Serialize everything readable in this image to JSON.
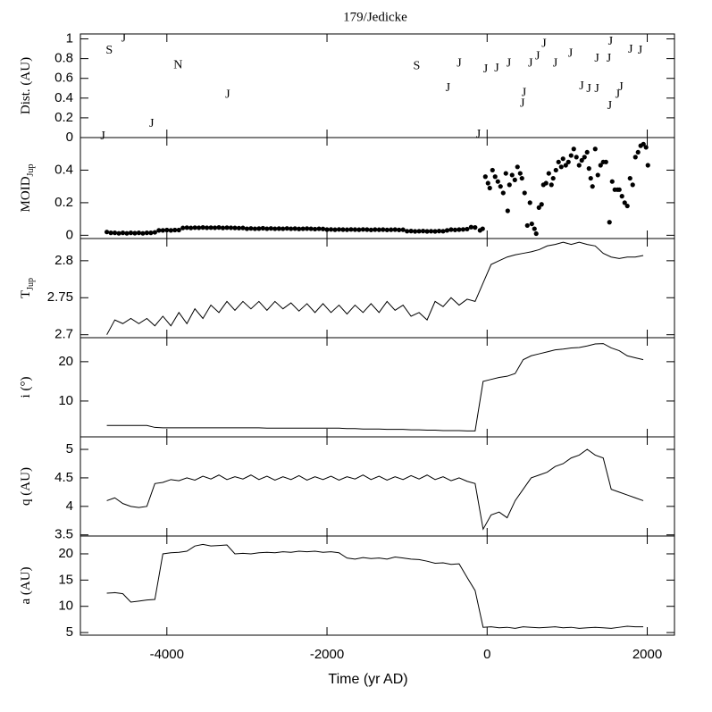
{
  "chart_data": [
    {
      "type": "scatter",
      "title": "179/Jedicke",
      "ylabel": "Dist. (AU)",
      "x": [
        -4800,
        -4720,
        -4540,
        -4190,
        -3860,
        -3240,
        -880,
        -490,
        -350,
        -110,
        -20,
        120,
        270,
        460,
        440,
        540,
        630,
        710,
        850,
        1040,
        1180,
        1270,
        1370,
        1370,
        1520,
        1530,
        1540,
        1630,
        1670,
        1790,
        1910
      ],
      "values": [
        0.01,
        0.88,
        1.0,
        0.14,
        0.73,
        0.43,
        0.72,
        0.5,
        0.75,
        0.03,
        0.69,
        0.7,
        0.75,
        0.45,
        0.34,
        0.75,
        0.82,
        0.95,
        0.75,
        0.85,
        0.52,
        0.49,
        0.49,
        0.8,
        0.8,
        0.32,
        0.97,
        0.43,
        0.51,
        0.89,
        0.88
      ],
      "marker_labels": [
        "J",
        "S",
        "J",
        "J",
        "N",
        "J",
        "S",
        "J",
        "J",
        "J",
        "J",
        "J",
        "J",
        "J",
        "J",
        "J",
        "J",
        "J",
        "J",
        "J",
        "J",
        "J",
        "J",
        "J",
        "J",
        "J",
        "J",
        "J",
        "J",
        "J",
        "J"
      ],
      "ylim": [
        0,
        1.05
      ],
      "yticks": [
        0,
        0.2,
        0.4,
        0.6,
        0.8,
        1
      ]
    },
    {
      "type": "scatter",
      "ylabel": "MOID",
      "ylabel_sub": "Jup",
      "color": "#000000",
      "x": [
        -4750,
        -4700,
        -4650,
        -4600,
        -4550,
        -4500,
        -4450,
        -4400,
        -4350,
        -4300,
        -4250,
        -4200,
        -4150,
        -4100,
        -4050,
        -4000,
        -3950,
        -3900,
        -3850,
        -3800,
        -3750,
        -3700,
        -3650,
        -3600,
        -3550,
        -3500,
        -3450,
        -3400,
        -3350,
        -3300,
        -3250,
        -3200,
        -3150,
        -3100,
        -3050,
        -3000,
        -2950,
        -2900,
        -2850,
        -2800,
        -2750,
        -2700,
        -2650,
        -2600,
        -2550,
        -2500,
        -2450,
        -2400,
        -2350,
        -2300,
        -2250,
        -2200,
        -2150,
        -2100,
        -2050,
        -2000,
        -1950,
        -1900,
        -1850,
        -1800,
        -1750,
        -1700,
        -1650,
        -1600,
        -1550,
        -1500,
        -1450,
        -1400,
        -1350,
        -1300,
        -1250,
        -1200,
        -1150,
        -1100,
        -1050,
        -1000,
        -950,
        -900,
        -850,
        -800,
        -750,
        -700,
        -650,
        -600,
        -550,
        -500,
        -450,
        -400,
        -350,
        -300,
        -250,
        -200,
        -150,
        -89,
        -56,
        -22,
        11,
        33,
        67,
        100,
        134,
        167,
        201,
        234,
        257,
        279,
        312,
        346,
        379,
        413,
        435,
        468,
        502,
        535,
        558,
        591,
        613,
        647,
        680,
        703,
        736,
        770,
        803,
        825,
        859,
        892,
        926,
        948,
        982,
        1015,
        1049,
        1082,
        1115,
        1149,
        1182,
        1216,
        1249,
        1272,
        1294,
        1316,
        1350,
        1383,
        1417,
        1450,
        1484,
        1528,
        1562,
        1595,
        1629,
        1651,
        1684,
        1718,
        1751,
        1785,
        1818,
        1852,
        1885,
        1918,
        1952,
        1985,
        2008
      ],
      "values": [
        0.02,
        0.015,
        0.015,
        0.012,
        0.015,
        0.012,
        0.015,
        0.013,
        0.015,
        0.012,
        0.015,
        0.015,
        0.018,
        0.03,
        0.03,
        0.032,
        0.03,
        0.032,
        0.032,
        0.045,
        0.047,
        0.045,
        0.047,
        0.046,
        0.048,
        0.046,
        0.047,
        0.046,
        0.048,
        0.045,
        0.047,
        0.046,
        0.045,
        0.044,
        0.045,
        0.04,
        0.042,
        0.04,
        0.041,
        0.043,
        0.04,
        0.042,
        0.04,
        0.041,
        0.04,
        0.042,
        0.04,
        0.041,
        0.039,
        0.04,
        0.041,
        0.04,
        0.038,
        0.04,
        0.039,
        0.035,
        0.036,
        0.034,
        0.036,
        0.035,
        0.034,
        0.036,
        0.035,
        0.034,
        0.036,
        0.035,
        0.033,
        0.035,
        0.034,
        0.035,
        0.033,
        0.034,
        0.035,
        0.033,
        0.034,
        0.025,
        0.026,
        0.024,
        0.025,
        0.026,
        0.024,
        0.025,
        0.024,
        0.026,
        0.025,
        0.03,
        0.035,
        0.033,
        0.035,
        0.036,
        0.038,
        0.05,
        0.048,
        0.03,
        0.04,
        0.36,
        0.32,
        0.29,
        0.4,
        0.36,
        0.33,
        0.3,
        0.26,
        0.38,
        0.15,
        0.31,
        0.37,
        0.34,
        0.42,
        0.38,
        0.35,
        0.26,
        0.06,
        0.2,
        0.07,
        0.04,
        0.01,
        0.17,
        0.19,
        0.31,
        0.32,
        0.38,
        0.31,
        0.35,
        0.4,
        0.45,
        0.42,
        0.47,
        0.43,
        0.45,
        0.49,
        0.53,
        0.48,
        0.43,
        0.46,
        0.48,
        0.51,
        0.41,
        0.35,
        0.3,
        0.53,
        0.37,
        0.43,
        0.45,
        0.45,
        0.08,
        0.33,
        0.28,
        0.28,
        0.28,
        0.24,
        0.2,
        0.18,
        0.35,
        0.31,
        0.48,
        0.51,
        0.55,
        0.56,
        0.54,
        0.43
      ],
      "ylim": [
        -0.02,
        0.6
      ],
      "yticks": [
        0,
        0.2,
        0.4
      ]
    },
    {
      "type": "line",
      "ylabel": "T",
      "ylabel_sub": "Jup",
      "color": "#000000",
      "x": [
        -4750,
        -4650,
        -4550,
        -4450,
        -4350,
        -4250,
        -4150,
        -4050,
        -3950,
        -3850,
        -3750,
        -3650,
        -3550,
        -3450,
        -3350,
        -3250,
        -3150,
        -3050,
        -2950,
        -2850,
        -2750,
        -2650,
        -2550,
        -2450,
        -2350,
        -2250,
        -2150,
        -2050,
        -1950,
        -1850,
        -1750,
        -1650,
        -1550,
        -1450,
        -1350,
        -1250,
        -1150,
        -1050,
        -950,
        -850,
        -750,
        -650,
        -550,
        -450,
        -350,
        -250,
        -150,
        -50,
        50,
        150,
        250,
        350,
        450,
        550,
        650,
        750,
        850,
        950,
        1050,
        1150,
        1250,
        1350,
        1450,
        1550,
        1650,
        1750,
        1850,
        1950
      ],
      "values": [
        2.7,
        2.72,
        2.715,
        2.722,
        2.715,
        2.722,
        2.712,
        2.725,
        2.712,
        2.73,
        2.715,
        2.735,
        2.722,
        2.74,
        2.73,
        2.745,
        2.733,
        2.745,
        2.735,
        2.745,
        2.733,
        2.745,
        2.735,
        2.743,
        2.732,
        2.742,
        2.73,
        2.742,
        2.73,
        2.74,
        2.728,
        2.74,
        2.73,
        2.742,
        2.73,
        2.745,
        2.733,
        2.74,
        2.725,
        2.73,
        2.72,
        2.745,
        2.738,
        2.75,
        2.74,
        2.748,
        2.745,
        2.77,
        2.795,
        2.8,
        2.805,
        2.808,
        2.81,
        2.812,
        2.815,
        2.82,
        2.822,
        2.825,
        2.822,
        2.825,
        2.822,
        2.82,
        2.81,
        2.805,
        2.803,
        2.805,
        2.805,
        2.807
      ],
      "ylim": [
        2.696,
        2.83
      ],
      "yticks": [
        2.7,
        2.75,
        2.8
      ]
    },
    {
      "type": "line",
      "ylabel": "i (°)",
      "color": "#000000",
      "x": [
        -4750,
        -4650,
        -4550,
        -4450,
        -4350,
        -4250,
        -4150,
        -4050,
        -3950,
        -3850,
        -3750,
        -3650,
        -3550,
        -3450,
        -3350,
        -3250,
        -3150,
        -3050,
        -2950,
        -2850,
        -2750,
        -2650,
        -2550,
        -2450,
        -2350,
        -2250,
        -2150,
        -2050,
        -1950,
        -1850,
        -1750,
        -1650,
        -1550,
        -1450,
        -1350,
        -1250,
        -1150,
        -1050,
        -950,
        -850,
        -750,
        -650,
        -550,
        -450,
        -350,
        -250,
        -150,
        -50,
        50,
        150,
        250,
        350,
        450,
        550,
        650,
        750,
        850,
        950,
        1050,
        1150,
        1250,
        1350,
        1450,
        1550,
        1650,
        1750,
        1850,
        1950
      ],
      "values": [
        3.8,
        3.8,
        3.8,
        3.8,
        3.8,
        3.8,
        3.3,
        3.2,
        3.2,
        3.2,
        3.2,
        3.2,
        3.2,
        3.2,
        3.2,
        3.2,
        3.2,
        3.2,
        3.2,
        3.2,
        3.1,
        3.1,
        3.1,
        3.1,
        3.1,
        3.1,
        3.1,
        3.1,
        3.1,
        3.1,
        3.0,
        3.0,
        2.9,
        2.9,
        2.9,
        2.8,
        2.8,
        2.8,
        2.7,
        2.7,
        2.6,
        2.6,
        2.5,
        2.5,
        2.5,
        2.4,
        2.4,
        15.0,
        15.5,
        16.0,
        16.3,
        17.0,
        20.5,
        21.5,
        22.0,
        22.5,
        23.0,
        23.2,
        23.5,
        23.6,
        24.0,
        24.5,
        24.6,
        23.5,
        22.8,
        21.5,
        21.0,
        20.5
      ],
      "ylim": [
        0.9,
        26.1
      ],
      "yticks": [
        10,
        20
      ]
    },
    {
      "type": "line",
      "ylabel": "q (AU)",
      "color": "#000000",
      "x": [
        -4750,
        -4650,
        -4550,
        -4450,
        -4350,
        -4250,
        -4150,
        -4050,
        -3950,
        -3850,
        -3750,
        -3650,
        -3550,
        -3450,
        -3350,
        -3250,
        -3150,
        -3050,
        -2950,
        -2850,
        -2750,
        -2650,
        -2550,
        -2450,
        -2350,
        -2250,
        -2150,
        -2050,
        -1950,
        -1850,
        -1750,
        -1650,
        -1550,
        -1450,
        -1350,
        -1250,
        -1150,
        -1050,
        -950,
        -850,
        -750,
        -650,
        -550,
        -450,
        -350,
        -250,
        -150,
        -50,
        50,
        150,
        250,
        350,
        450,
        550,
        650,
        750,
        850,
        950,
        1050,
        1150,
        1250,
        1350,
        1450,
        1550,
        1650,
        1750,
        1850,
        1950
      ],
      "values": [
        4.1,
        4.15,
        4.05,
        4.0,
        3.98,
        4.0,
        4.4,
        4.42,
        4.47,
        4.45,
        4.5,
        4.46,
        4.53,
        4.48,
        4.55,
        4.47,
        4.52,
        4.48,
        4.55,
        4.47,
        4.53,
        4.46,
        4.52,
        4.47,
        4.54,
        4.46,
        4.52,
        4.47,
        4.53,
        4.46,
        4.52,
        4.48,
        4.55,
        4.47,
        4.53,
        4.46,
        4.52,
        4.47,
        4.54,
        4.48,
        4.55,
        4.47,
        4.52,
        4.45,
        4.5,
        4.44,
        4.4,
        3.6,
        3.85,
        3.9,
        3.8,
        4.1,
        4.3,
        4.5,
        4.55,
        4.6,
        4.7,
        4.75,
        4.85,
        4.9,
        5.0,
        4.9,
        4.85,
        4.3,
        4.25,
        4.2,
        4.15,
        4.1
      ],
      "ylim": [
        3.48,
        5.22
      ],
      "yticks": [
        3.5,
        4,
        4.5,
        5
      ]
    },
    {
      "type": "line",
      "ylabel": "a (AU)",
      "xlabel": "Time (yr AD)",
      "color": "#000000",
      "x": [
        -4750,
        -4650,
        -4550,
        -4450,
        -4350,
        -4250,
        -4150,
        -4050,
        -3950,
        -3850,
        -3750,
        -3650,
        -3550,
        -3450,
        -3350,
        -3250,
        -3150,
        -3050,
        -2950,
        -2850,
        -2750,
        -2650,
        -2550,
        -2450,
        -2350,
        -2250,
        -2150,
        -2050,
        -1950,
        -1850,
        -1750,
        -1650,
        -1550,
        -1450,
        -1350,
        -1250,
        -1150,
        -1050,
        -950,
        -850,
        -750,
        -650,
        -550,
        -450,
        -350,
        -250,
        -150,
        -50,
        50,
        150,
        250,
        350,
        450,
        550,
        650,
        750,
        850,
        950,
        1050,
        1150,
        1250,
        1350,
        1450,
        1550,
        1650,
        1750,
        1850,
        1950
      ],
      "values": [
        12.5,
        12.6,
        12.4,
        10.8,
        11.0,
        11.2,
        11.3,
        20.0,
        20.2,
        20.3,
        20.5,
        21.5,
        21.8,
        21.5,
        21.6,
        21.7,
        20.0,
        20.1,
        20.0,
        20.2,
        20.3,
        20.2,
        20.4,
        20.3,
        20.5,
        20.4,
        20.5,
        20.3,
        20.4,
        20.2,
        19.2,
        19.0,
        19.3,
        19.1,
        19.2,
        19.0,
        19.4,
        19.2,
        19.0,
        18.9,
        18.6,
        18.2,
        18.3,
        18.0,
        18.1,
        15.5,
        13.0,
        6.0,
        6.1,
        5.9,
        6.0,
        5.8,
        6.1,
        6.0,
        5.9,
        6.0,
        6.1,
        5.9,
        6.0,
        5.8,
        5.9,
        6.0,
        5.9,
        5.8,
        6.0,
        6.2,
        6.1,
        6.1
      ],
      "ylim": [
        4.5,
        23.4
      ],
      "yticks": [
        5,
        10,
        15,
        20
      ],
      "xlim": [
        -5080,
        2340
      ],
      "xticks": [
        -4000,
        -2000,
        0,
        2000
      ]
    }
  ]
}
